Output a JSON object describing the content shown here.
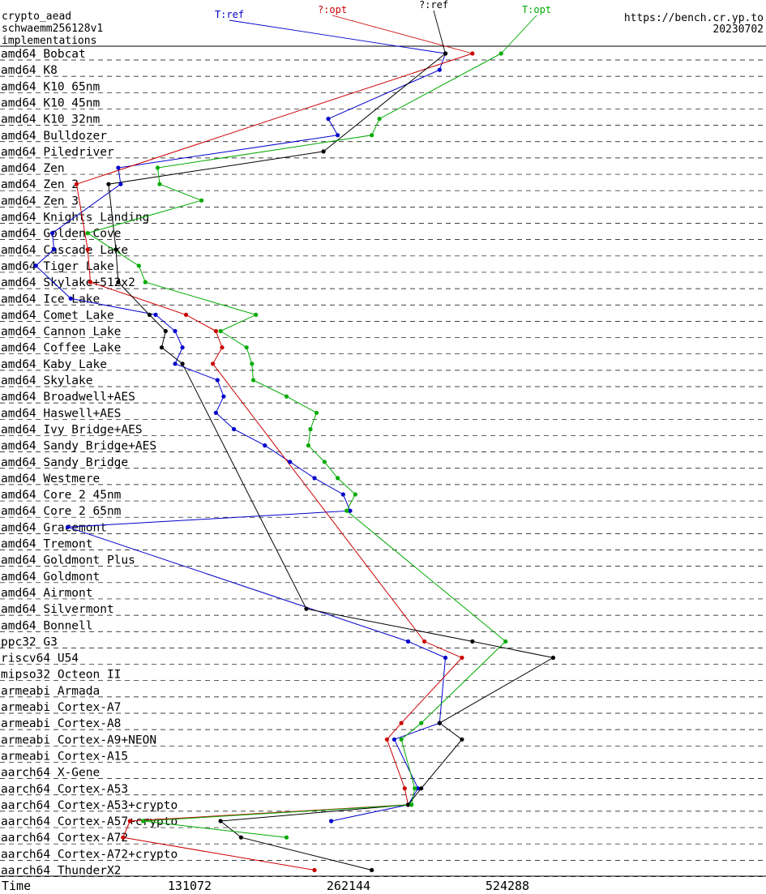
{
  "header": {
    "left_lines": [
      "crypto_aead",
      "schwaemm256128v1",
      "implementations"
    ],
    "right_lines": [
      "https://bench.cr.yp.to",
      "20230702"
    ]
  },
  "chart_data": {
    "type": "line",
    "title": "",
    "xlabel": "Time",
    "x_scale": "log2",
    "x_ticks": [
      131072,
      262144,
      524288
    ],
    "x_tick_labels": [
      "131072",
      "262144",
      "524288"
    ],
    "rows": [
      "amd64 Bobcat",
      "amd64 K8",
      "amd64 K10 65nm",
      "amd64 K10 45nm",
      "amd64 K10 32nm",
      "amd64 Bulldozer",
      "amd64 Piledriver",
      "amd64 Zen",
      "amd64 Zen 2",
      "amd64 Zen 3",
      "amd64 Knights Landing",
      "amd64 Golden Cove",
      "amd64 Cascade Lake",
      "amd64 Tiger Lake",
      "amd64 Skylake+512x2",
      "amd64 Ice Lake",
      "amd64 Comet Lake",
      "amd64 Cannon Lake",
      "amd64 Coffee Lake",
      "amd64 Kaby Lake",
      "amd64 Skylake",
      "amd64 Broadwell+AES",
      "amd64 Haswell+AES",
      "amd64 Ivy Bridge+AES",
      "amd64 Sandy Bridge+AES",
      "amd64 Sandy Bridge",
      "amd64 Westmere",
      "amd64 Core 2 45nm",
      "amd64 Core 2 65nm",
      "amd64 Gracemont",
      "amd64 Tremont",
      "amd64 Goldmont Plus",
      "amd64 Goldmont",
      "amd64 Airmont",
      "amd64 Silvermont",
      "amd64 Bonnell",
      "ppc32 G3",
      "riscv64 U54",
      "mipso32 Octeon II",
      "armeabi Armada",
      "armeabi Cortex-A7",
      "armeabi Cortex-A8",
      "armeabi Cortex-A9+NEON",
      "armeabi Cortex-A15",
      "aarch64 X-Gene",
      "aarch64 Cortex-A53",
      "aarch64 Cortex-A53+crypto",
      "aarch64 Cortex-A57+crypto",
      "aarch64 Cortex-A72",
      "aarch64 Cortex-A72+crypto",
      "aarch64 ThunderX2"
    ],
    "series": [
      {
        "name": "T:ref",
        "color": "#0000cc",
        "values": [
          400000,
          390000,
          null,
          null,
          240000,
          250000,
          null,
          96000,
          97000,
          null,
          null,
          72000,
          72500,
          67000,
          null,
          78000,
          113000,
          123000,
          127000,
          123000,
          148000,
          152000,
          147000,
          159000,
          182000,
          203000,
          226000,
          256000,
          264000,
          77000,
          null,
          null,
          null,
          null,
          null,
          null,
          340000,
          400000,
          null,
          null,
          null,
          390000,
          320000,
          null,
          null,
          355000,
          340000,
          243000,
          null,
          null,
          null
        ]
      },
      {
        "name": "?:opt",
        "color": "#cc0000",
        "values": [
          450000,
          null,
          null,
          null,
          null,
          null,
          null,
          null,
          80000,
          null,
          null,
          null,
          84000,
          null,
          85000,
          null,
          129000,
          147000,
          151000,
          145000,
          null,
          null,
          null,
          null,
          null,
          null,
          null,
          null,
          null,
          null,
          null,
          null,
          null,
          null,
          null,
          null,
          365000,
          430000,
          null,
          null,
          null,
          330000,
          310000,
          null,
          null,
          335000,
          340000,
          101000,
          98000,
          null,
          226000
        ]
      },
      {
        "name": "?:ref",
        "color": "#000000",
        "values": [
          400000,
          null,
          null,
          null,
          null,
          null,
          235000,
          null,
          92000,
          null,
          null,
          null,
          95000,
          null,
          96000,
          null,
          110000,
          118000,
          116000,
          127000,
          null,
          null,
          null,
          null,
          null,
          null,
          null,
          null,
          null,
          null,
          null,
          null,
          null,
          null,
          218000,
          null,
          450000,
          640000,
          null,
          null,
          null,
          390000,
          430000,
          null,
          null,
          360000,
          340000,
          150000,
          164000,
          null,
          290000
        ]
      },
      {
        "name": "T:opt",
        "color": "#00aa00",
        "values": [
          510000,
          null,
          null,
          null,
          300000,
          290000,
          null,
          114000,
          115000,
          138000,
          null,
          84000,
          null,
          105000,
          108000,
          null,
          175000,
          150000,
          168000,
          172000,
          173000,
          200000,
          228000,
          222000,
          220000,
          236000,
          250000,
          270000,
          260000,
          null,
          null,
          null,
          null,
          null,
          null,
          null,
          520000,
          null,
          null,
          null,
          null,
          360000,
          330000,
          null,
          null,
          350000,
          345000,
          107000,
          200000,
          null,
          null
        ]
      }
    ],
    "legend": "top"
  }
}
